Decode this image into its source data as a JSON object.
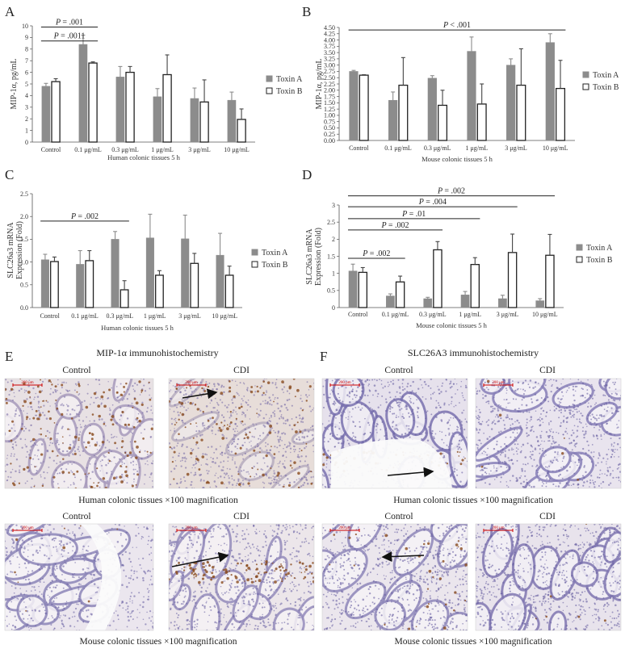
{
  "chart_data": [
    {
      "panel": "A",
      "type": "bar",
      "ylabel": "MIP-1α, pg/mL",
      "xlabel": "Human colonic tissues 5 h",
      "categories": [
        "Control",
        "0.1 μg/mL",
        "0.3 μg/mL",
        "1 μg/mL",
        "3 μg/mL",
        "10 μg/mL"
      ],
      "ylim": [
        0,
        10
      ],
      "yticks": [
        "0",
        "1",
        "2",
        "3",
        "4",
        "5",
        "6",
        "7",
        "8",
        "9",
        "10"
      ],
      "series": [
        {
          "name": "Toxin A",
          "values": [
            4.8,
            8.4,
            5.6,
            3.9,
            3.75,
            3.6
          ],
          "errors": [
            0.25,
            0.8,
            0.9,
            0.7,
            0.9,
            0.7
          ]
        },
        {
          "name": "Toxin B",
          "values": [
            5.2,
            6.8,
            6.0,
            5.8,
            3.45,
            1.95
          ],
          "errors": [
            0.25,
            0.1,
            0.5,
            1.7,
            1.9,
            0.9
          ]
        }
      ],
      "annotations": [
        {
          "text": "P = .001",
          "from": 0,
          "to": 1,
          "y": 9.9
        },
        {
          "text": "P = .0011",
          "from": 0,
          "to": 1,
          "y": 8.7
        }
      ],
      "legend": "right"
    },
    {
      "panel": "B",
      "type": "bar",
      "ylabel": "MIP-1α, pg/mL",
      "xlabel": "Mouse colonic tissues 5 h",
      "categories": [
        "Control",
        "0.1 μg/mL",
        "0.3 μg/mL",
        "1 μg/mL",
        "3 μg/mL",
        "10 μg/mL"
      ],
      "ylim": [
        0,
        4.5
      ],
      "yticks": [
        "0.00",
        "0.25",
        "0.50",
        "0.75",
        "1.00",
        "1.25",
        "1.50",
        "1.75",
        "2.00",
        "2.25",
        "2.50",
        "2.75",
        "3.00",
        "3.25",
        "3.50",
        "3.75",
        "4.00",
        "4.25",
        "4.50"
      ],
      "series": [
        {
          "name": "Toxin A",
          "values": [
            2.75,
            1.6,
            2.48,
            3.55,
            3.0,
            3.9
          ],
          "errors": [
            0.04,
            0.33,
            0.1,
            0.57,
            0.25,
            0.35
          ]
        },
        {
          "name": "Toxin B",
          "values": [
            2.6,
            2.2,
            1.4,
            1.45,
            2.2,
            2.07
          ],
          "errors": [
            0.02,
            1.1,
            0.6,
            0.8,
            1.45,
            1.12
          ]
        }
      ],
      "annotations": [
        {
          "text": "P < .001",
          "from": 0,
          "to": 5,
          "y": 4.4
        }
      ],
      "legend": "right"
    },
    {
      "panel": "C",
      "type": "bar",
      "ylabel": "SLC26a3 mRNA Expression (Fold)",
      "xlabel": "Human colonic tissues 5 h",
      "categories": [
        "Control",
        "0.1 μg/mL",
        "0.3 μg/mL",
        "1 μg/mL",
        "3 μg/mL",
        "10 μg/mL"
      ],
      "ylim": [
        0,
        2.5
      ],
      "yticks": [
        "0.0",
        "0.5",
        "1.0",
        "1.5",
        "2.0",
        "2.5"
      ],
      "series": [
        {
          "name": "Toxin A",
          "values": [
            1.05,
            0.95,
            1.5,
            1.53,
            1.51,
            1.15
          ],
          "errors": [
            0.12,
            0.3,
            0.17,
            0.52,
            0.52,
            0.48
          ]
        },
        {
          "name": "Toxin B",
          "values": [
            1.01,
            1.03,
            0.39,
            0.71,
            0.97,
            0.71
          ],
          "errors": [
            0.1,
            0.22,
            0.2,
            0.1,
            0.22,
            0.2
          ]
        }
      ],
      "annotations": [
        {
          "text": "P = .002",
          "from": 0,
          "to": 2,
          "y": 1.9
        }
      ],
      "legend": "right"
    },
    {
      "panel": "D",
      "type": "bar",
      "ylabel": "SLC26a3 mRNA Expression (Fold)",
      "xlabel": "Mouse colonic tissues 5 h",
      "categories": [
        "Control",
        "0.1 μg/mL",
        "0.3 μg/mL",
        "1 μg/mL",
        "3 μg/mL",
        "10 μg/mL"
      ],
      "ylim": [
        0,
        3.0
      ],
      "yticks": [
        "0",
        "0.5",
        "1",
        "1.5",
        "2",
        "2.5",
        "3"
      ],
      "series": [
        {
          "name": "Toxin A",
          "values": [
            1.07,
            0.34,
            0.26,
            0.37,
            0.26,
            0.2
          ],
          "errors": [
            0.2,
            0.06,
            0.04,
            0.1,
            0.1,
            0.06
          ]
        },
        {
          "name": "Toxin B",
          "values": [
            1.03,
            0.75,
            1.69,
            1.26,
            1.61,
            1.53
          ],
          "errors": [
            0.14,
            0.17,
            0.24,
            0.2,
            0.54,
            0.61
          ]
        }
      ],
      "annotations": [
        {
          "text": "P = .002",
          "from": 0,
          "to": 5,
          "y": 3.27
        },
        {
          "text": "P = .004",
          "from": 0,
          "to": 4,
          "y": 2.95
        },
        {
          "text": "P = .01",
          "from": 0,
          "to": 3,
          "y": 2.6
        },
        {
          "text": "P = .002",
          "from": 0,
          "to": 2,
          "y": 2.27
        },
        {
          "text": "P = .002",
          "from": 0,
          "to": 1,
          "y": 1.44
        }
      ],
      "legend": "right"
    }
  ],
  "panel_letters": {
    "A": "A",
    "B": "B",
    "C": "C",
    "D": "D",
    "E": "E",
    "F": "F"
  },
  "ihc": {
    "E": {
      "title": "MIP-1α immunohistochemistry",
      "top_left": "Control",
      "top_right": "CDI",
      "caption_top": "Human colonic tissues ×100 magnification",
      "bottom_left": "Control",
      "bottom_right": "CDI",
      "caption_bottom": "Mouse colonic tissues ×100 magnification"
    },
    "F": {
      "title": "SLC26A3 immunohistochemistry",
      "top_left": "Control",
      "top_right": "CDI",
      "caption_top": "Human colonic tissues ×100 magnification",
      "bottom_left": "Control",
      "bottom_right": "CDI",
      "caption_bottom": "Mouse colonic tissues ×100 magnification"
    },
    "scale_label": "200 μm"
  },
  "colors": {
    "toxin_a": "#8c8c8c",
    "toxin_b": "#ffffff",
    "bar_edge": "#222222",
    "tissue_bg": "#e9e4ec",
    "stain_brown": "#8a4b1e",
    "nuclei": "#6f68a6",
    "scale_bar": "#cc0000"
  }
}
